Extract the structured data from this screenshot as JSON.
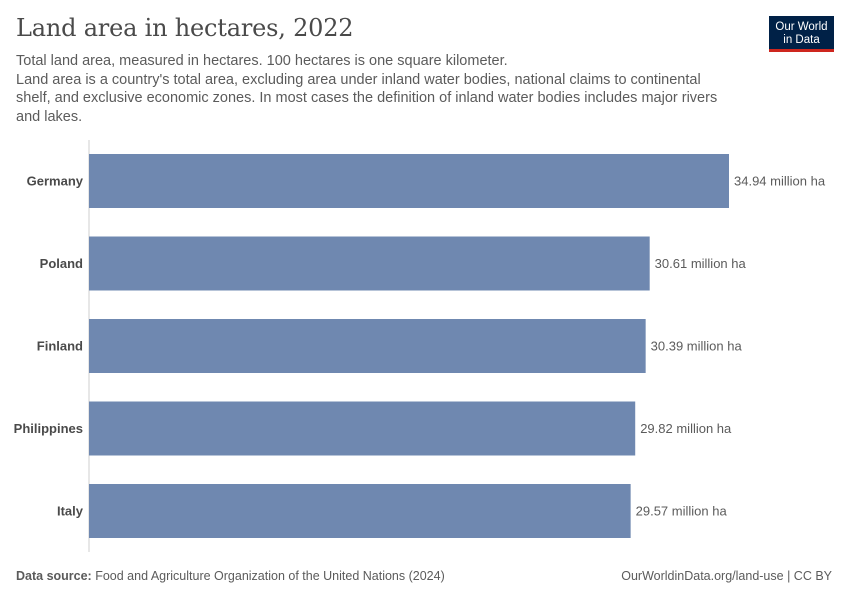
{
  "header": {
    "title": "Land area in hectares, 2022",
    "subtitle_line1": "Total land area, measured in hectares. 100 hectares is one square kilometer.",
    "subtitle_line2": "Land area is a country's total area, excluding area under inland water bodies, national claims to continental shelf, and exclusive economic zones. In most cases the definition of inland water bodies includes major rivers and lakes."
  },
  "logo": {
    "line1": "Our World",
    "line2": "in Data"
  },
  "colors": {
    "bar": "#6f88b0",
    "logo_bg": "#002147",
    "logo_accent": "#ce261e"
  },
  "chart_data": {
    "type": "bar",
    "orientation": "horizontal",
    "categories": [
      "Germany",
      "Poland",
      "Finland",
      "Philippines",
      "Italy"
    ],
    "values": [
      34.94,
      30.61,
      30.39,
      29.82,
      29.57
    ],
    "value_labels": [
      "34.94 million ha",
      "30.61 million ha",
      "30.39 million ha",
      "29.82 million ha",
      "29.57 million ha"
    ],
    "unit": "million ha",
    "xlim": [
      0,
      34.94
    ],
    "title": "Land area in hectares, 2022"
  },
  "footer": {
    "source_label": "Data source:",
    "source_text": "Food and Agriculture Organization of the United Nations (2024)",
    "link_text": "OurWorldinData.org/land-use",
    "license": "| CC BY"
  }
}
